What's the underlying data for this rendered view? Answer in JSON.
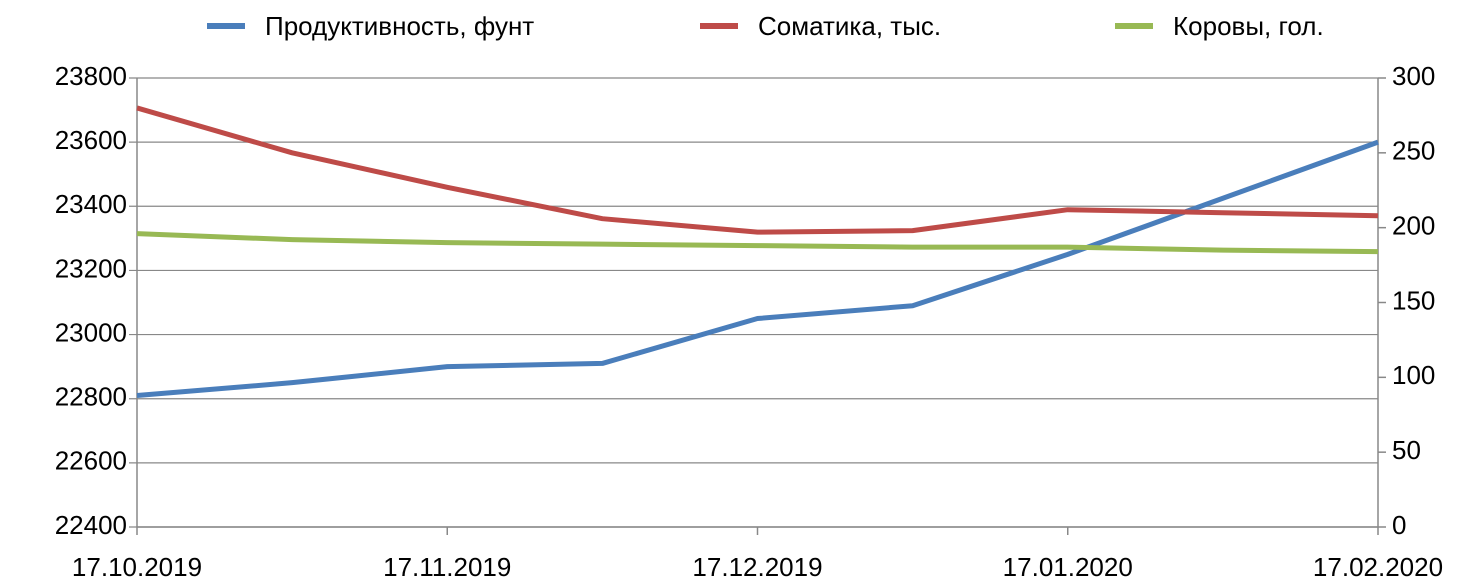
{
  "chart_data": {
    "type": "line",
    "categories": [
      "17.10.2019",
      null,
      "17.11.2019",
      null,
      "17.12.2019",
      null,
      "17.01.2020",
      null,
      "17.02.2020"
    ],
    "series": [
      {
        "name": "Продуктивность, фунт",
        "color": "#4a7ebb",
        "values": [
          22810,
          22850,
          22900,
          22910,
          23050,
          23090,
          23250,
          23425,
          23600
        ]
      },
      {
        "name": "Соматика, тыс.",
        "color": "#be4b48",
        "axis": "y2",
        "values": [
          280,
          250,
          227,
          206,
          197,
          198,
          212,
          210,
          208
        ]
      },
      {
        "name": "Коровы, гол.",
        "color": "#98b954",
        "axis": "y2",
        "values": [
          196,
          192,
          190,
          189,
          188,
          187,
          187,
          185,
          184
        ]
      }
    ],
    "ylim": [
      22400,
      23800
    ],
    "yticks": [
      22400,
      22600,
      22800,
      23000,
      23200,
      23400,
      23600,
      23800
    ],
    "y2lim": [
      0,
      300
    ],
    "y2ticks": [
      0,
      50,
      100,
      150,
      200,
      250,
      300
    ],
    "grid": true,
    "legend": "top"
  }
}
